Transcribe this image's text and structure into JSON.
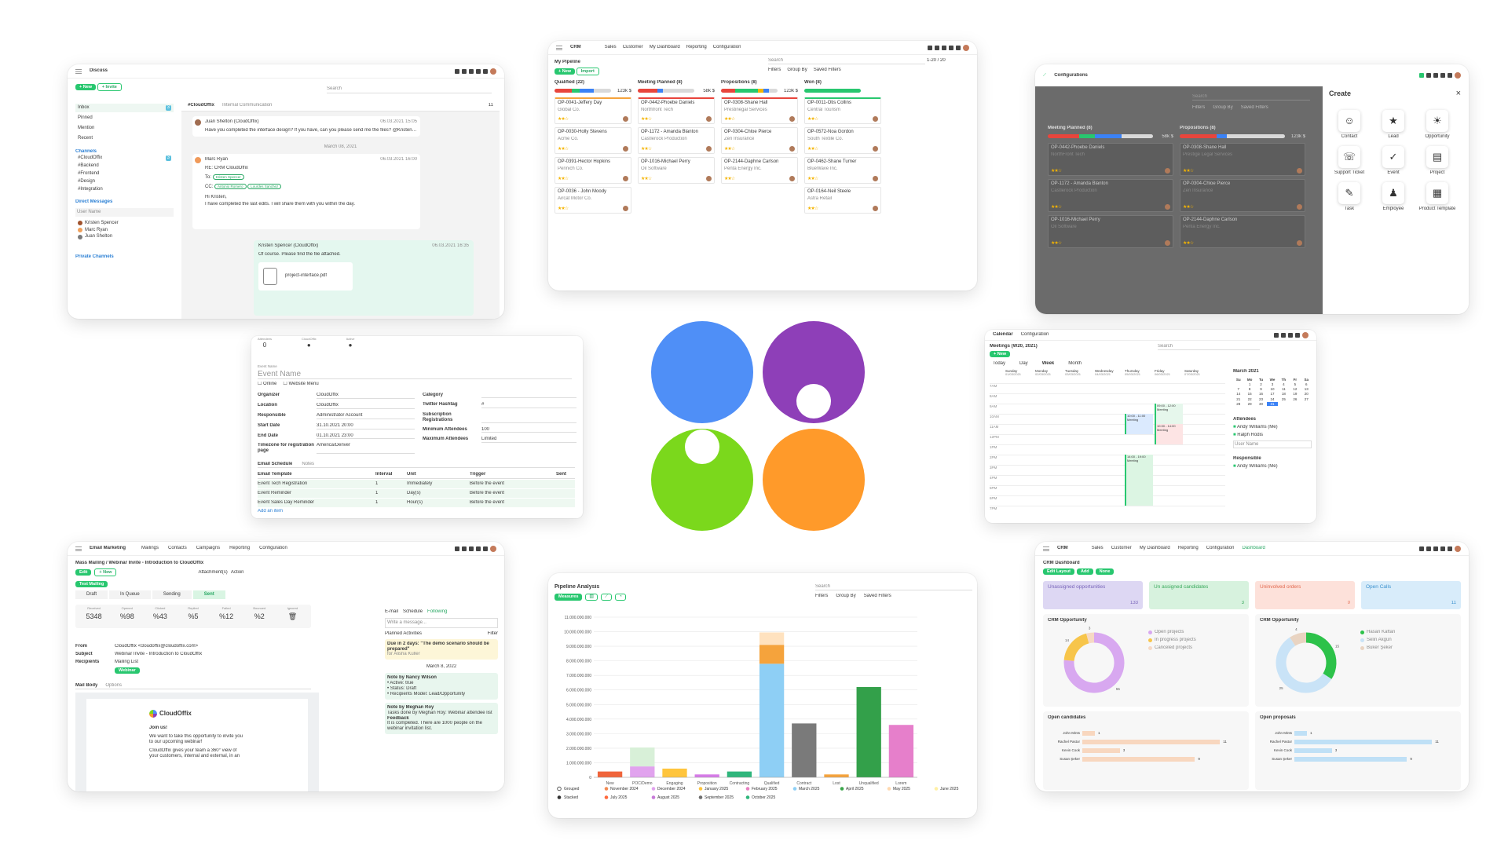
{
  "discuss": {
    "app": "Discuss",
    "new": "+ New",
    "invite": "+ Invite",
    "search": "Search",
    "nav": [
      "Inbox",
      "Pinned",
      "Mention",
      "Recent"
    ],
    "inbox_count": "3",
    "channels_h": "Channels",
    "channels": [
      "#CloudOffix",
      "#Backend",
      "#Frontend",
      "#Design",
      "#Integration"
    ],
    "channels_count": "3",
    "dm_h": "Direct Messages",
    "user_name": "User Name",
    "dms": [
      "Kristen Spencer",
      "Marc Ryan",
      "Juan Shelton"
    ],
    "private_h": "Private Channels",
    "channel_title": "#CloudOffix",
    "channel_desc": "Internal Communication",
    "member_count": "11",
    "m1_name": "Juan Shelton (CloudOffix)",
    "m1_date": "06.03.2021 15:05",
    "m1_text": "Have you completed the interface design? If you have, can you please send me the files? @Kristen Spencer",
    "date_div": "March 08, 2021",
    "m2_name": "Marc Ryan",
    "m2_date": "06.03.2021 16:00",
    "m2_sub": "RE: CRM CloudOffix",
    "m2_to": "To:",
    "m2_to_tag": "Kristen Spencer",
    "m2_cc": "CC:",
    "m2_cc1": "Antonio Romero",
    "m2_cc2": "Lourdes Sanchez",
    "m2_hi": "Hi Kristen,",
    "m2_body": "I have completed the last edits. I will share them with you within the day.",
    "m3_name": "Kristen Spencer (CloudOffix)",
    "m3_date": "06.03.2021 16:35",
    "m3_text": "Of course. Please find the file attached.",
    "m3_file": "project-interface.pdf"
  },
  "pipeline": {
    "app": "CRM",
    "menu": [
      "Sales",
      "Customer",
      "My Dashboard",
      "Reporting",
      "Configuration"
    ],
    "title": "My Pipeline",
    "new": "+ New",
    "import": "Import",
    "search": "Search",
    "filters": "Filters",
    "groupby": "Group By",
    "saved": "Saved Filters",
    "pager": "1-20 / 20",
    "cols": [
      {
        "name": "Qualified (22)",
        "amount": "123k $",
        "cards": [
          {
            "t": "OP-0041-Jeffery Day",
            "c": "Global Co."
          },
          {
            "t": "OP-0030-Holly Stevens",
            "c": "Acme Co."
          },
          {
            "t": "OP-0391-Hector Hopkins",
            "c": "Pennich Co."
          },
          {
            "t": "OP-0036 - John Moody",
            "c": "Aircat Motor Co."
          }
        ]
      },
      {
        "name": "Meeting Planned (8)",
        "amount": "58k $",
        "cards": [
          {
            "t": "OP-0442-Phoebe Daniels",
            "c": "Northfront Tech"
          },
          {
            "t": "OP-1172 - Amanda Blanton",
            "c": "Castlerock Production"
          },
          {
            "t": "OP-1016-Michael Perry",
            "c": "Oil Software"
          }
        ]
      },
      {
        "name": "Propositions (8)",
        "amount": "123k $",
        "cards": [
          {
            "t": "OP-0308-Shane Hall",
            "c": "Prestinegal Services"
          },
          {
            "t": "OP-0304-Chloe Pierce",
            "c": "Zen Insurance"
          },
          {
            "t": "OP-2144-Daphne Carlson",
            "c": "Penta Energy Inc."
          }
        ]
      },
      {
        "name": "Won (8)",
        "amount": "",
        "cards": [
          {
            "t": "OP-0011-Otis Collins",
            "c": "Central Tourism"
          },
          {
            "t": "OP-0572-Noa Gordon",
            "c": "South Textile Co."
          },
          {
            "t": "OP-0462-Shane Turner",
            "c": "BlueWave Inc."
          },
          {
            "t": "OP-0164-Neil Steele",
            "c": "Astra Retail"
          }
        ]
      }
    ]
  },
  "create": {
    "app": "Configurations",
    "panel_title": "Create",
    "close": "×",
    "items": [
      "Contact",
      "Lead",
      "Opportunity",
      "Support Ticket",
      "Event",
      "Project",
      "Task",
      "Employee",
      "Product Template"
    ],
    "bg_cols": [
      {
        "name": "Meeting Planned (8)",
        "amount": "58k $",
        "cards": [
          {
            "t": "OP-0442-Phoebe Daniels",
            "c": "NorthFront Tech"
          },
          {
            "t": "OP-1172 - Amanda Blanton",
            "c": "Castlerock Production"
          },
          {
            "t": "OP-1016-Michael Perry",
            "c": "Oil Software"
          }
        ]
      },
      {
        "name": "Propositions (8)",
        "amount": "123k $",
        "cards": [
          {
            "t": "OP-0308-Shane Hall",
            "c": "Prestige Legal Services"
          },
          {
            "t": "OP-0304-Chloe Pierce",
            "c": "Zen Insurance"
          },
          {
            "t": "OP-2144-Daphne Carlson",
            "c": "Penta Energy Inc."
          }
        ]
      }
    ],
    "search": "Search",
    "filters": "Filters",
    "groupby": "Group By",
    "saved": "Saved Filters"
  },
  "event": {
    "stats": [
      {
        "label": "Attendees",
        "val": "0"
      },
      {
        "label": "CloudOffix",
        "val": ""
      },
      {
        "label": "Active",
        "val": ""
      }
    ],
    "name_label": "Event Name",
    "name_ph": "Event Name",
    "chk1": "Online",
    "chk2": "Website Menu",
    "left": [
      {
        "k": "Organizer",
        "v": "CloudOffix"
      },
      {
        "k": "Location",
        "v": "CloudOffix"
      },
      {
        "k": "Responsible",
        "v": "Administrator Account"
      },
      {
        "k": "Start Date",
        "v": "31.10.2021 20:00"
      },
      {
        "k": "End Date",
        "v": "01.10.2021 23:00"
      },
      {
        "k": "Timezone for registration page",
        "v": "America/Denver"
      }
    ],
    "right": [
      {
        "k": "Category",
        "v": ""
      },
      {
        "k": "Twitter Hashtag",
        "v": "#"
      },
      {
        "k": "Subscription Registrations",
        "v": ""
      },
      {
        "k": "Minimum Attendees",
        "v": "100"
      },
      {
        "k": "Maximum Attendees",
        "v": "Limited"
      }
    ],
    "tabs": [
      "Email Schedule",
      "Notes"
    ],
    "table_head": [
      "Email Template",
      "Interval",
      "Unit",
      "Trigger",
      "Sent"
    ],
    "rows": [
      [
        "Event Tech Registration",
        "1",
        "Immediately",
        "Before the event"
      ],
      [
        "Event Reminder",
        "1",
        "Day(s)",
        "Before the event"
      ],
      [
        "Event Sales Day Reminder",
        "1",
        "Hour(s)",
        "Before the event"
      ]
    ],
    "add": "Add an item"
  },
  "logo": {
    "c1": "#4f8ff7",
    "c2": "#8e3fb8",
    "c3": "#7bd81c",
    "c4": "#ff9a2a"
  },
  "calendar": {
    "app": "Calendar",
    "config": "Configuration",
    "title": "Meetings (W20, 2021)",
    "new": "+ New",
    "today": "Today",
    "day": "Day",
    "week": "Week",
    "month": "Month",
    "search": "Search",
    "days": [
      "Sunday",
      "Monday",
      "Tuesday",
      "Wednesday",
      "Thursday",
      "Friday",
      "Saturday"
    ],
    "dates": [
      "01/03/2021",
      "02/03/2021",
      "03/03/2021",
      "04/03/2021",
      "05/03/2021",
      "06/03/2021",
      "07/03/2021"
    ],
    "hours": [
      "7AM",
      "8AM",
      "9AM",
      "10AM",
      "11AM",
      "12PM",
      "1PM",
      "2PM",
      "3PM",
      "4PM",
      "5PM",
      "6PM",
      "7PM"
    ],
    "events": [
      {
        "t": "09:00 - 12:00 Meeting"
      },
      {
        "t": "10:00 - 11:00 Meeting"
      },
      {
        "t": "10:30 - 14:00 Meeting"
      },
      {
        "t": "14:00 - 19:00 Meeting"
      }
    ],
    "mini_title": "March 2021",
    "mini_days": [
      "Su",
      "Mo",
      "Tu",
      "We",
      "Th",
      "Fr",
      "Sa"
    ],
    "mini": [
      "",
      "1",
      "2",
      "3",
      "4",
      "5",
      "6",
      "7",
      "8",
      "9",
      "10",
      "11",
      "12",
      "13",
      "14",
      "15",
      "16",
      "17",
      "18",
      "19",
      "20",
      "21",
      "22",
      "23",
      "24",
      "25",
      "26",
      "27",
      "28",
      "29",
      "30",
      "31",
      "",
      "",
      ""
    ],
    "attendees_h": "Attendees",
    "attendees": [
      "Andy Williams (Me)",
      "Ralph Rodis"
    ],
    "user_name": "User Name",
    "resp_h": "Responsible",
    "resp": "Andy Williams (Me)"
  },
  "email": {
    "app": "Email Marketing",
    "menu": [
      "Mailings",
      "Contacts",
      "Campaigns",
      "Reporting",
      "Configuration"
    ],
    "title": "Mass Mailing / Webinar Invite - Introduction to CloudOffix",
    "edit": "Edit",
    "new": "+ New",
    "attach": "Attachment(s)",
    "action": "Action",
    "test": "Test Mailing",
    "steps": [
      "Draft",
      "In Queue",
      "Sending",
      "Sent"
    ],
    "stats": [
      {
        "k": "Received",
        "v": "5348"
      },
      {
        "k": "Opened",
        "v": "%98"
      },
      {
        "k": "Clicked",
        "v": "%43"
      },
      {
        "k": "Replied",
        "v": "%5"
      },
      {
        "k": "Failed",
        "v": "%12"
      },
      {
        "k": "Bounced",
        "v": "%2"
      },
      {
        "k": "Ignored",
        "v": ""
      }
    ],
    "from_k": "From",
    "from_v": "CloudOffix <cloudoffix@cloudoffix.com>",
    "subj_k": "Subject",
    "subj_v": "Webinar Invite - Introduction to CloudOffix",
    "rec_k": "Recipients",
    "rec_v": "Mailing List",
    "rec_tag": "Webinar",
    "tabs": [
      "Mail Body",
      "Options"
    ],
    "brand": "CloudOffix",
    "join": "Join us!",
    "p1": "We want to take this opportunity to invite you to our upcoming webinar!",
    "p2": "CloudOffix gives your team a 360° view of your customers, internal and external, in an",
    "send": "E-mail",
    "sched": "Schedule",
    "following": "Following",
    "chat_ph": "Write a message...",
    "planned": "Planned Activities",
    "filter": "Filter",
    "act": "Due in 2 days: \"The demo scenario should be prepared\"",
    "act_by": "for Alisha Kuller",
    "date": "March 8, 2022",
    "n1_by": "Note by Nancy Wilson",
    "n1": [
      "Active: true",
      "Status: Draft",
      "Recipients Model: Lead/Opportunity"
    ],
    "n2_by": "Note by Meghan Roy",
    "n2": "Tasks done by Meghan Roy: Webinar attendee list",
    "n2_h": "Feedback",
    "n2_b": "It is completed. There are 1000 people on the webinar invitation list."
  },
  "analysis": {
    "title": "Pipeline Analysis",
    "measures": "Measures",
    "search": "Search",
    "filters": "Filters",
    "groupby": "Group By",
    "saved": "Saved Filters",
    "grouped": "Grouped",
    "stacked": "Stacked",
    "legend": [
      {
        "n": "November 2024",
        "c": "#f28b54"
      },
      {
        "n": "December 2024",
        "c": "#e1a3ee"
      },
      {
        "n": "January 2025",
        "c": "#ffc53d"
      },
      {
        "n": "February 2025",
        "c": "#e87fc1"
      },
      {
        "n": "March 2025",
        "c": "#8ecff5"
      },
      {
        "n": "April 2025",
        "c": "#3aa64a"
      },
      {
        "n": "May 2025",
        "c": "#ffd9b0"
      },
      {
        "n": "June 2025",
        "c": "#fff0a6"
      },
      {
        "n": "July 2025",
        "c": "#ff6a3d"
      },
      {
        "n": "August 2025",
        "c": "#c77bd8"
      },
      {
        "n": "September 2025",
        "c": "#6f6f6f"
      },
      {
        "n": "October 2025",
        "c": "#2fb67c"
      }
    ]
  },
  "chart_data": {
    "type": "bar",
    "title": "",
    "stacked": true,
    "categories": [
      "New",
      "POC/Demo",
      "Engaging",
      "Proposition",
      "Contracting",
      "Qualified",
      "Contract",
      "Lost",
      "Unqualified",
      "Lorem"
    ],
    "yticks": [
      "0",
      "1.000.000.000",
      "2.000.000.000",
      "3.000.000.000",
      "4.000.000.000",
      "5.000.000.000",
      "6.000.000.000",
      "7.000.000.000",
      "8.000.000.000",
      "9.000.000.000",
      "10.000.000.000",
      "11.000.000.000"
    ],
    "ylim": [
      0,
      11000000000
    ],
    "series": [
      {
        "color": "#f0643a",
        "values": [
          400000000,
          0,
          0,
          0,
          0,
          0,
          0,
          0,
          0,
          0
        ]
      },
      {
        "color": "#e1a3ee",
        "values": [
          0,
          750000000,
          0,
          0,
          0,
          0,
          0,
          0,
          0,
          0
        ]
      },
      {
        "color": "#d8f0d8",
        "values": [
          0,
          1300000000,
          0,
          0,
          0,
          0,
          0,
          0,
          0,
          0
        ]
      },
      {
        "color": "#ffc53d",
        "values": [
          0,
          0,
          600000000,
          0,
          0,
          0,
          0,
          0,
          0,
          0
        ]
      },
      {
        "color": "#d67be8",
        "values": [
          0,
          0,
          0,
          200000000,
          0,
          0,
          0,
          0,
          0,
          0
        ]
      },
      {
        "color": "#2fb67c",
        "values": [
          0,
          0,
          0,
          0,
          400000000,
          0,
          0,
          0,
          0,
          0
        ]
      },
      {
        "color": "#8ecff5",
        "values": [
          0,
          0,
          0,
          0,
          0,
          7800000000,
          0,
          0,
          0,
          0
        ]
      },
      {
        "color": "#f5a33c",
        "values": [
          0,
          0,
          0,
          0,
          0,
          1300000000,
          0,
          0,
          0,
          0
        ]
      },
      {
        "color": "#ffe2bf",
        "values": [
          0,
          0,
          0,
          0,
          0,
          850000000,
          0,
          0,
          0,
          0
        ]
      },
      {
        "color": "#7a7a7a",
        "values": [
          0,
          0,
          0,
          0,
          0,
          0,
          3700000000,
          0,
          0,
          0
        ]
      },
      {
        "color": "#f5a33c",
        "values": [
          0,
          0,
          0,
          0,
          0,
          0,
          0,
          200000000,
          0,
          0
        ]
      },
      {
        "color": "#33a04a",
        "values": [
          0,
          0,
          0,
          0,
          0,
          0,
          0,
          0,
          6200000000,
          0
        ]
      },
      {
        "color": "#e67fcb",
        "values": [
          0,
          0,
          0,
          0,
          0,
          0,
          0,
          0,
          0,
          3600000000
        ]
      }
    ]
  },
  "dashboard": {
    "app": "CRM",
    "menu": [
      "Sales",
      "Customer",
      "My Dashboard",
      "Reporting",
      "Configuration",
      "Dashboard"
    ],
    "title": "CRM Dashboard",
    "edit": "Edit Layout",
    "add": "Add",
    "none": "None",
    "tiles": [
      {
        "t": "Unassigned opportunities",
        "v": "133",
        "bg": "#ddd7f3",
        "fg": "#7763b9"
      },
      {
        "t": "Un assigned candidates",
        "v": "3",
        "bg": "#d7f2de",
        "fg": "#37a85a"
      },
      {
        "t": "Uninvolved orders",
        "v": "0",
        "bg": "#fde1da",
        "fg": "#e2674d"
      },
      {
        "t": "Open Calls",
        "v": "11",
        "bg": "#d8ecfa",
        "fg": "#3d92cf"
      }
    ],
    "d1_title": "CRM Opportunity",
    "d1_legend": [
      "Open projects",
      "In progress projects",
      "Canceled projects"
    ],
    "d1_colors": [
      "#d8a8f0",
      "#f7c54b",
      "#f6d9c4"
    ],
    "d1_vals": [
      "55",
      "14",
      "3"
    ],
    "d2_title": "CRM Opportunity",
    "d2_legend": [
      "Hasan Kaftan",
      "Selin Akgün",
      "Buker Şeker"
    ],
    "d2_colors": [
      "#2dc24a",
      "#c9e3f7",
      "#e9d4c2"
    ],
    "d2_vals": [
      "15",
      "25",
      "4"
    ],
    "oc_title": "Open candidates",
    "oc": [
      {
        "n": "John Mints",
        "v": "1"
      },
      {
        "n": "Rachel Pastor",
        "v": "11"
      },
      {
        "n": "Kevin Cook",
        "v": "3"
      },
      {
        "n": "Susan Şeker",
        "v": "9"
      }
    ],
    "op_title": "Open proposals",
    "op": [
      {
        "n": "John Mints",
        "v": "1"
      },
      {
        "n": "Rachel Pastor",
        "v": "11"
      },
      {
        "n": "Kevin Cook",
        "v": "3"
      },
      {
        "n": "Susan Şeker",
        "v": "9"
      }
    ]
  }
}
